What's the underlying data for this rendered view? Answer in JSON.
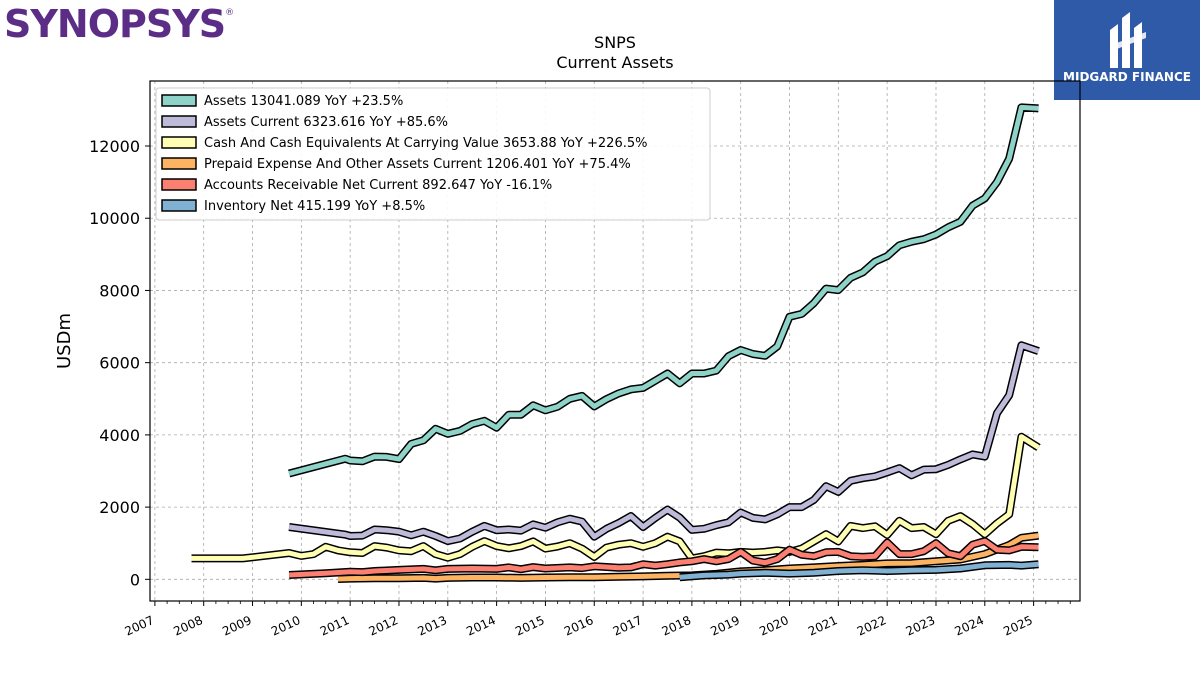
{
  "logos": {
    "left_text": "SYNOPSYS",
    "left_mark": "®",
    "right_text": "MIDGARD FINANCE",
    "left_color": "#5b2d86",
    "right_bg": "#2f5aa8"
  },
  "chart_data": {
    "type": "line",
    "title": "SNPS",
    "subtitle": "Current  Assets",
    "xlabel": "",
    "ylabel": "USDm",
    "xlim": [
      2006.9,
      2025.95
    ],
    "ylim": [
      -600,
      13800
    ],
    "grid": true,
    "legend_position": "top-left",
    "x_ticks": [
      "2007",
      "2008",
      "2009",
      "2010",
      "2011",
      "2012",
      "2013",
      "2014",
      "2015",
      "2016",
      "2017",
      "2018",
      "2019",
      "2020",
      "2021",
      "2022",
      "2023",
      "2024",
      "2025"
    ],
    "y_ticks": [
      0,
      2000,
      4000,
      6000,
      8000,
      10000,
      12000
    ],
    "series": [
      {
        "name": "Assets  13041.089 YoY +23.5%",
        "color": "#8dd3c7",
        "points": [
          [
            2009.75,
            2930
          ],
          [
            2010.9,
            3340
          ],
          [
            2011.0,
            3290
          ],
          [
            2011.25,
            3270
          ],
          [
            2011.5,
            3400
          ],
          [
            2011.75,
            3390
          ],
          [
            2012.0,
            3330
          ],
          [
            2012.25,
            3750
          ],
          [
            2012.5,
            3850
          ],
          [
            2012.75,
            4170
          ],
          [
            2013.0,
            4030
          ],
          [
            2013.25,
            4110
          ],
          [
            2013.5,
            4300
          ],
          [
            2013.75,
            4390
          ],
          [
            2014.0,
            4200
          ],
          [
            2014.25,
            4560
          ],
          [
            2014.5,
            4560
          ],
          [
            2014.75,
            4820
          ],
          [
            2015.0,
            4680
          ],
          [
            2015.25,
            4780
          ],
          [
            2015.5,
            5000
          ],
          [
            2015.75,
            5080
          ],
          [
            2016.0,
            4790
          ],
          [
            2016.25,
            4990
          ],
          [
            2016.5,
            5150
          ],
          [
            2016.75,
            5260
          ],
          [
            2017.0,
            5300
          ],
          [
            2017.25,
            5500
          ],
          [
            2017.5,
            5700
          ],
          [
            2017.75,
            5430
          ],
          [
            2018.0,
            5700
          ],
          [
            2018.25,
            5700
          ],
          [
            2018.5,
            5780
          ],
          [
            2018.75,
            6180
          ],
          [
            2019.0,
            6350
          ],
          [
            2019.25,
            6240
          ],
          [
            2019.5,
            6190
          ],
          [
            2019.75,
            6450
          ],
          [
            2020.0,
            7270
          ],
          [
            2020.25,
            7350
          ],
          [
            2020.5,
            7650
          ],
          [
            2020.75,
            8050
          ],
          [
            2021.0,
            8010
          ],
          [
            2021.25,
            8350
          ],
          [
            2021.5,
            8500
          ],
          [
            2021.75,
            8800
          ],
          [
            2022.0,
            8950
          ],
          [
            2022.25,
            9250
          ],
          [
            2022.5,
            9350
          ],
          [
            2022.75,
            9420
          ],
          [
            2023.0,
            9550
          ],
          [
            2023.25,
            9750
          ],
          [
            2023.5,
            9900
          ],
          [
            2023.75,
            10350
          ],
          [
            2024.0,
            10550
          ],
          [
            2024.25,
            11000
          ],
          [
            2024.5,
            11650
          ],
          [
            2024.75,
            13070
          ],
          [
            2025.1,
            13040
          ]
        ]
      },
      {
        "name": "Assets Current  6323.616 YoY +85.6%",
        "color": "#bebada",
        "points": [
          [
            2009.75,
            1450
          ],
          [
            2010.9,
            1240
          ],
          [
            2011.0,
            1200
          ],
          [
            2011.25,
            1210
          ],
          [
            2011.5,
            1380
          ],
          [
            2011.75,
            1360
          ],
          [
            2012.0,
            1320
          ],
          [
            2012.25,
            1220
          ],
          [
            2012.5,
            1320
          ],
          [
            2012.75,
            1200
          ],
          [
            2013.0,
            1060
          ],
          [
            2013.25,
            1130
          ],
          [
            2013.5,
            1320
          ],
          [
            2013.75,
            1480
          ],
          [
            2014.0,
            1360
          ],
          [
            2014.25,
            1380
          ],
          [
            2014.5,
            1350
          ],
          [
            2014.75,
            1520
          ],
          [
            2015.0,
            1430
          ],
          [
            2015.25,
            1580
          ],
          [
            2015.5,
            1680
          ],
          [
            2015.75,
            1600
          ],
          [
            2016.0,
            1180
          ],
          [
            2016.25,
            1400
          ],
          [
            2016.5,
            1560
          ],
          [
            2016.75,
            1750
          ],
          [
            2017.0,
            1450
          ],
          [
            2017.25,
            1700
          ],
          [
            2017.5,
            1930
          ],
          [
            2017.75,
            1710
          ],
          [
            2018.0,
            1370
          ],
          [
            2018.25,
            1400
          ],
          [
            2018.5,
            1500
          ],
          [
            2018.75,
            1580
          ],
          [
            2019.0,
            1850
          ],
          [
            2019.25,
            1700
          ],
          [
            2019.5,
            1660
          ],
          [
            2019.75,
            1800
          ],
          [
            2020.0,
            2000
          ],
          [
            2020.25,
            2000
          ],
          [
            2020.5,
            2200
          ],
          [
            2020.75,
            2580
          ],
          [
            2021.0,
            2420
          ],
          [
            2021.25,
            2730
          ],
          [
            2021.5,
            2800
          ],
          [
            2021.75,
            2850
          ],
          [
            2022.0,
            2960
          ],
          [
            2022.25,
            3080
          ],
          [
            2022.5,
            2880
          ],
          [
            2022.75,
            3040
          ],
          [
            2023.0,
            3050
          ],
          [
            2023.25,
            3170
          ],
          [
            2023.5,
            3320
          ],
          [
            2023.75,
            3460
          ],
          [
            2024.0,
            3400
          ],
          [
            2024.25,
            4600
          ],
          [
            2024.5,
            5100
          ],
          [
            2024.75,
            6480
          ],
          [
            2025.1,
            6320
          ]
        ]
      },
      {
        "name": "Cash And Cash Equivalents At Carrying Value  3653.88 YoY +226.5%",
        "color": "#ffffb3",
        "points": [
          [
            2007.75,
            580
          ],
          [
            2008.0,
            580
          ],
          [
            2008.8,
            580
          ],
          [
            2009.75,
            730
          ],
          [
            2010.0,
            650
          ],
          [
            2010.25,
            700
          ],
          [
            2010.5,
            900
          ],
          [
            2010.75,
            800
          ],
          [
            2011.0,
            750
          ],
          [
            2011.25,
            730
          ],
          [
            2011.5,
            920
          ],
          [
            2011.75,
            880
          ],
          [
            2012.0,
            800
          ],
          [
            2012.25,
            780
          ],
          [
            2012.5,
            920
          ],
          [
            2012.75,
            700
          ],
          [
            2013.0,
            600
          ],
          [
            2013.25,
            700
          ],
          [
            2013.5,
            900
          ],
          [
            2013.75,
            1060
          ],
          [
            2014.0,
            920
          ],
          [
            2014.25,
            860
          ],
          [
            2014.5,
            920
          ],
          [
            2014.75,
            1050
          ],
          [
            2015.0,
            850
          ],
          [
            2015.25,
            910
          ],
          [
            2015.5,
            1000
          ],
          [
            2015.75,
            850
          ],
          [
            2016.0,
            620
          ],
          [
            2016.25,
            880
          ],
          [
            2016.5,
            960
          ],
          [
            2016.75,
            1000
          ],
          [
            2017.0,
            900
          ],
          [
            2017.25,
            1000
          ],
          [
            2017.5,
            1180
          ],
          [
            2017.75,
            1050
          ],
          [
            2018.0,
            580
          ],
          [
            2018.25,
            640
          ],
          [
            2018.5,
            740
          ],
          [
            2018.75,
            720
          ],
          [
            2019.0,
            760
          ],
          [
            2019.25,
            740
          ],
          [
            2019.5,
            760
          ],
          [
            2019.75,
            800
          ],
          [
            2020.0,
            760
          ],
          [
            2020.25,
            850
          ],
          [
            2020.5,
            1050
          ],
          [
            2020.75,
            1250
          ],
          [
            2021.0,
            1050
          ],
          [
            2021.25,
            1480
          ],
          [
            2021.5,
            1420
          ],
          [
            2021.75,
            1470
          ],
          [
            2022.0,
            1230
          ],
          [
            2022.25,
            1620
          ],
          [
            2022.5,
            1420
          ],
          [
            2022.75,
            1450
          ],
          [
            2023.0,
            1250
          ],
          [
            2023.25,
            1620
          ],
          [
            2023.5,
            1750
          ],
          [
            2023.75,
            1530
          ],
          [
            2024.0,
            1250
          ],
          [
            2024.25,
            1550
          ],
          [
            2024.5,
            1800
          ],
          [
            2024.75,
            3950
          ],
          [
            2025.1,
            3650
          ]
        ]
      },
      {
        "name": "Prepaid Expense And Other Assets Current  1206.401 YoY +75.4%",
        "color": "#fdb462",
        "points": [
          [
            2010.75,
            10
          ],
          [
            2011.0,
            20
          ],
          [
            2011.5,
            30
          ],
          [
            2012.0,
            30
          ],
          [
            2012.5,
            40
          ],
          [
            2012.75,
            20
          ],
          [
            2013.0,
            40
          ],
          [
            2013.5,
            50
          ],
          [
            2014.0,
            50
          ],
          [
            2014.5,
            40
          ],
          [
            2015.0,
            50
          ],
          [
            2015.5,
            60
          ],
          [
            2016.0,
            60
          ],
          [
            2016.5,
            70
          ],
          [
            2017.0,
            80
          ],
          [
            2017.5,
            100
          ],
          [
            2018.0,
            110
          ],
          [
            2018.5,
            150
          ],
          [
            2019.0,
            220
          ],
          [
            2019.5,
            250
          ],
          [
            2020.0,
            300
          ],
          [
            2020.5,
            330
          ],
          [
            2021.0,
            370
          ],
          [
            2021.5,
            400
          ],
          [
            2022.0,
            440
          ],
          [
            2022.5,
            450
          ],
          [
            2023.0,
            500
          ],
          [
            2023.5,
            550
          ],
          [
            2024.0,
            700
          ],
          [
            2024.5,
            950
          ],
          [
            2024.75,
            1150
          ],
          [
            2025.1,
            1210
          ]
        ]
      },
      {
        "name": "Accounts Receivable Net Current  892.647 YoY -16.1%",
        "color": "#fb8072",
        "points": [
          [
            2009.75,
            120
          ],
          [
            2010.5,
            170
          ],
          [
            2011.0,
            210
          ],
          [
            2011.25,
            200
          ],
          [
            2011.5,
            230
          ],
          [
            2012.0,
            260
          ],
          [
            2012.5,
            290
          ],
          [
            2012.75,
            250
          ],
          [
            2013.0,
            290
          ],
          [
            2013.5,
            300
          ],
          [
            2014.0,
            290
          ],
          [
            2014.25,
            330
          ],
          [
            2014.5,
            280
          ],
          [
            2014.75,
            340
          ],
          [
            2015.0,
            300
          ],
          [
            2015.5,
            330
          ],
          [
            2015.75,
            310
          ],
          [
            2016.0,
            360
          ],
          [
            2016.5,
            320
          ],
          [
            2016.75,
            330
          ],
          [
            2017.0,
            420
          ],
          [
            2017.25,
            380
          ],
          [
            2017.5,
            420
          ],
          [
            2017.75,
            470
          ],
          [
            2018.0,
            500
          ],
          [
            2018.25,
            560
          ],
          [
            2018.5,
            500
          ],
          [
            2018.75,
            560
          ],
          [
            2019.0,
            760
          ],
          [
            2019.25,
            520
          ],
          [
            2019.5,
            460
          ],
          [
            2019.75,
            560
          ],
          [
            2020.0,
            820
          ],
          [
            2020.25,
            680
          ],
          [
            2020.5,
            640
          ],
          [
            2020.75,
            750
          ],
          [
            2021.0,
            760
          ],
          [
            2021.25,
            640
          ],
          [
            2021.5,
            620
          ],
          [
            2021.75,
            640
          ],
          [
            2022.0,
            1020
          ],
          [
            2022.25,
            700
          ],
          [
            2022.5,
            700
          ],
          [
            2022.75,
            780
          ],
          [
            2023.0,
            1000
          ],
          [
            2023.25,
            720
          ],
          [
            2023.5,
            640
          ],
          [
            2023.75,
            960
          ],
          [
            2024.0,
            1060
          ],
          [
            2024.25,
            820
          ],
          [
            2024.5,
            800
          ],
          [
            2024.75,
            900
          ],
          [
            2025.1,
            890
          ]
        ]
      },
      {
        "name": "Inventory Net  415.199 YoY +8.5%",
        "color": "#80b1d3",
        "points": [
          [
            2017.75,
            60
          ],
          [
            2018.25,
            110
          ],
          [
            2018.75,
            130
          ],
          [
            2019.0,
            160
          ],
          [
            2019.5,
            180
          ],
          [
            2020.0,
            160
          ],
          [
            2020.5,
            180
          ],
          [
            2021.0,
            230
          ],
          [
            2021.5,
            250
          ],
          [
            2022.0,
            230
          ],
          [
            2022.5,
            250
          ],
          [
            2023.0,
            260
          ],
          [
            2023.5,
            300
          ],
          [
            2024.0,
            390
          ],
          [
            2024.5,
            400
          ],
          [
            2024.75,
            380
          ],
          [
            2025.1,
            415
          ]
        ]
      }
    ]
  }
}
